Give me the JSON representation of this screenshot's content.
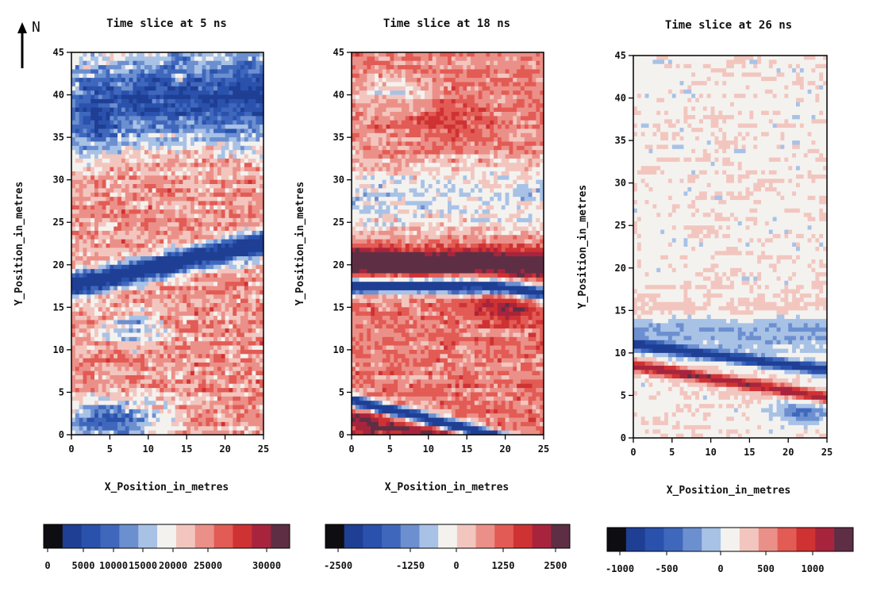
{
  "north_label": "N",
  "chart_data": [
    {
      "type": "heatmap",
      "title": "Time slice at 5 ns",
      "xlabel": "X_Position_in_metres",
      "ylabel": "Y_Position_in_metres",
      "xlim": [
        0,
        25
      ],
      "ylim": [
        0,
        45
      ],
      "xticks": [
        0,
        5,
        10,
        15,
        20,
        25
      ],
      "yticks": [
        0,
        5,
        10,
        15,
        20,
        25,
        30,
        35,
        40,
        45
      ],
      "colorbar": {
        "tick_labels": [
          "0",
          "5000",
          "10000",
          "15000",
          "20000",
          "25000",
          "30000"
        ],
        "colors": [
          "#0d0d12",
          "#1f3f94",
          "#2a52ad",
          "#3f68bd",
          "#6c8fd0",
          "#a8c2e6",
          "#f4f2ef",
          "#f2c6bf",
          "#eb9088",
          "#e25b54",
          "#cf3233",
          "#a8243d",
          "#5e2f44"
        ]
      }
    },
    {
      "type": "heatmap",
      "title": "Time slice at 18 ns",
      "xlabel": "X_Position_in_metres",
      "ylabel": "Y_Position_in_metres",
      "xlim": [
        0,
        25
      ],
      "ylim": [
        0,
        45
      ],
      "xticks": [
        0,
        5,
        10,
        15,
        20,
        25
      ],
      "yticks": [
        0,
        5,
        10,
        15,
        20,
        25,
        30,
        35,
        40,
        45
      ],
      "colorbar": {
        "tick_labels": [
          "-2500",
          "-1250",
          "0",
          "1250",
          "2500"
        ],
        "colors": [
          "#0d0d12",
          "#1f3f94",
          "#2a52ad",
          "#3f68bd",
          "#6c8fd0",
          "#a8c2e6",
          "#f4f2ef",
          "#f2c6bf",
          "#eb9088",
          "#e25b54",
          "#cf3233",
          "#a8243d",
          "#5e2f44"
        ]
      }
    },
    {
      "type": "heatmap",
      "title": "Time slice at 26 ns",
      "xlabel": "X_Position_in_metres",
      "ylabel": "Y_Position_in_metres",
      "xlim": [
        0,
        25
      ],
      "ylim": [
        0,
        45
      ],
      "xticks": [
        0,
        5,
        10,
        15,
        20,
        25
      ],
      "yticks": [
        0,
        5,
        10,
        15,
        20,
        25,
        30,
        35,
        40,
        45
      ],
      "colorbar": {
        "tick_labels": [
          "-1000",
          "-500",
          "0",
          "500",
          "1000"
        ],
        "colors": [
          "#0d0d12",
          "#1f3f94",
          "#2a52ad",
          "#3f68bd",
          "#6c8fd0",
          "#a8c2e6",
          "#f4f2ef",
          "#f2c6bf",
          "#eb9088",
          "#e25b54",
          "#cf3233",
          "#a8243d",
          "#5e2f44"
        ]
      }
    }
  ]
}
